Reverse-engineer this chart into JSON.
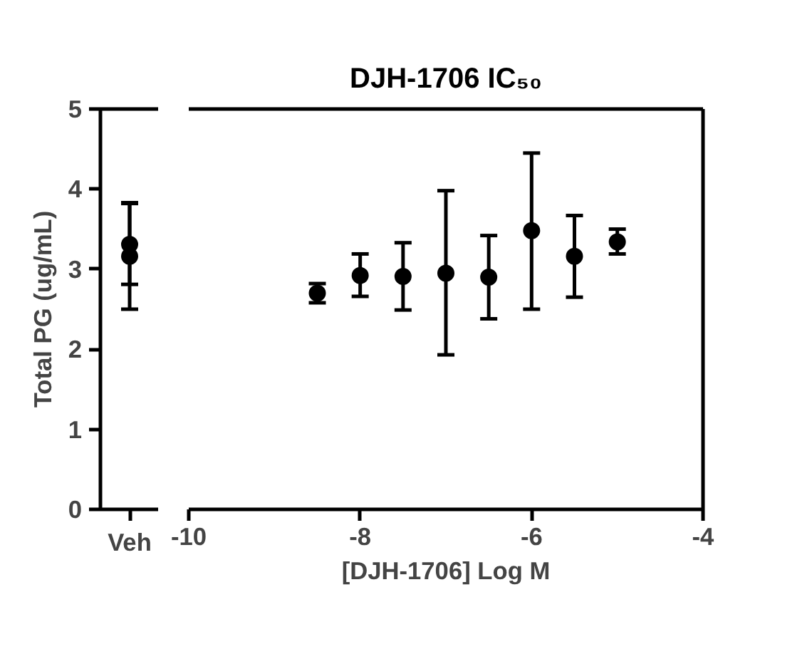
{
  "chart_data": [
    {
      "type": "scatter",
      "ylabel": "Total PG (ug/mL)",
      "categories": [
        "Veh"
      ],
      "ylim": [
        0,
        5
      ],
      "yticks": [
        0,
        1,
        2,
        3,
        4,
        5
      ],
      "marker": "circle",
      "series": [
        {
          "color": "#000000",
          "values": [
            3.31
          ],
          "errors": [
            [
              2.81,
              3.83
            ]
          ]
        },
        {
          "color": "#000000",
          "values": [
            3.16
          ],
          "errors": [
            [
              2.5,
              3.82
            ]
          ]
        }
      ]
    },
    {
      "type": "scatter",
      "title": "DJH-1706 IC₅₀",
      "xlabel": "[DJH-1706] Log M",
      "x": [
        -8.5,
        -8,
        -7.5,
        -7,
        -6.5,
        -6,
        -5.5,
        -5
      ],
      "xlim": [
        -10,
        -4
      ],
      "xticks": [
        -10,
        -8,
        -6,
        -4
      ],
      "ylim": [
        0,
        5
      ],
      "yticks": [
        0,
        1,
        2,
        3,
        4,
        5
      ],
      "tick_labels": "x",
      "marker": "circle",
      "series": [
        {
          "color": "#000000",
          "values": [
            2.7,
            2.92,
            2.91,
            2.95,
            2.9,
            3.48,
            3.16,
            3.34
          ],
          "errors": [
            [
              2.58,
              2.82
            ],
            [
              2.66,
              3.19
            ],
            [
              2.49,
              3.33
            ],
            [
              1.93,
              3.98
            ],
            [
              2.38,
              3.42
            ],
            [
              2.5,
              4.45
            ],
            [
              2.65,
              3.67
            ],
            [
              3.19,
              3.5
            ]
          ]
        }
      ]
    }
  ]
}
